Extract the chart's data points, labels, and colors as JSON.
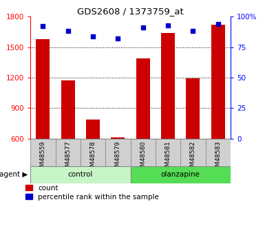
{
  "title": "GDS2608 / 1373759_at",
  "samples": [
    "GSM48559",
    "GSM48577",
    "GSM48578",
    "GSM48579",
    "GSM48580",
    "GSM48581",
    "GSM48582",
    "GSM48583"
  ],
  "counts": [
    1580,
    1170,
    790,
    615,
    1390,
    1640,
    1195,
    1720
  ],
  "percentile_ranks": [
    92,
    88,
    84,
    82,
    91,
    93,
    88,
    94
  ],
  "group_labels": [
    "control",
    "olanzapine"
  ],
  "group_colors": [
    "#c8f5c8",
    "#55dd55"
  ],
  "bar_color": "#CC0000",
  "dot_color": "#0000CC",
  "ylim_left": [
    600,
    1800
  ],
  "ylim_right": [
    0,
    100
  ],
  "yticks_left": [
    600,
    900,
    1200,
    1500,
    1800
  ],
  "yticks_right": [
    0,
    25,
    50,
    75,
    100
  ],
  "grid_ticks": [
    900,
    1200,
    1500
  ],
  "bar_width": 0.55,
  "legend_items": [
    "count",
    "percentile rank within the sample"
  ]
}
